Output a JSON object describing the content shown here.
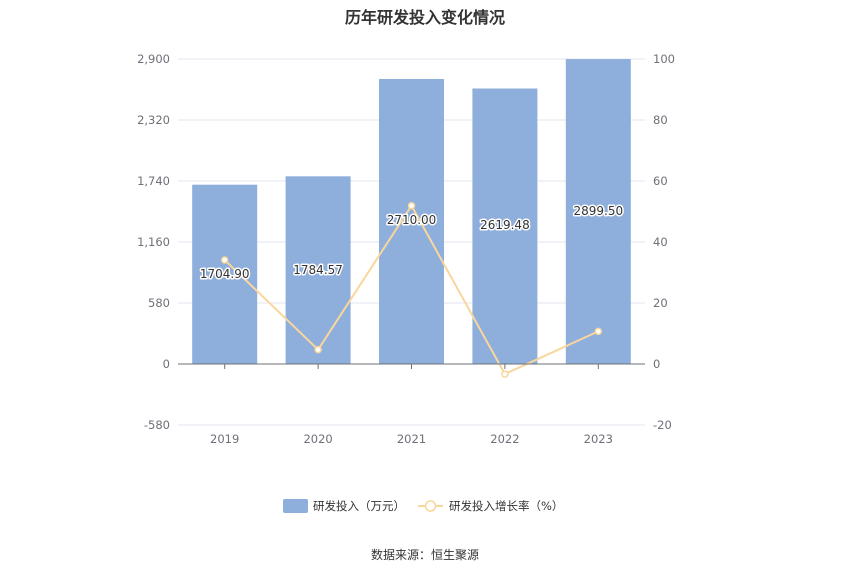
{
  "chart_data": {
    "type": "bar",
    "title": "历年研发投入变化情况",
    "categories": [
      "2019",
      "2020",
      "2021",
      "2022",
      "2023"
    ],
    "series": [
      {
        "name": "研发投入（万元）",
        "type": "bar",
        "axis": "left",
        "color": "#8eaedb",
        "values": [
          1704.9,
          1784.57,
          2710.0,
          2619.48,
          2899.5
        ],
        "labels": [
          "1704.90",
          "1784.57",
          "2710.00",
          "2619.48",
          "2899.50"
        ]
      },
      {
        "name": "研发投入增长率（%）",
        "type": "line",
        "axis": "right",
        "color": "#f9d69d",
        "values": [
          34.1,
          4.7,
          51.9,
          -3.3,
          10.7
        ]
      }
    ],
    "y_left": {
      "min": -580,
      "max": 2900,
      "ticks": [
        -580,
        0,
        580,
        1160,
        1740,
        2320,
        2900
      ],
      "tick_labels": [
        "-580",
        "0",
        "580",
        "1,160",
        "1,740",
        "2,320",
        "2,900"
      ]
    },
    "y_right": {
      "min": -20,
      "max": 100,
      "ticks": [
        -20,
        0,
        20,
        40,
        60,
        80,
        100
      ],
      "tick_labels": [
        "-20",
        "0",
        "20",
        "40",
        "60",
        "80",
        "100"
      ]
    },
    "grid": true,
    "legend_position": "bottom"
  },
  "source_text": "数据来源：恒生聚源"
}
